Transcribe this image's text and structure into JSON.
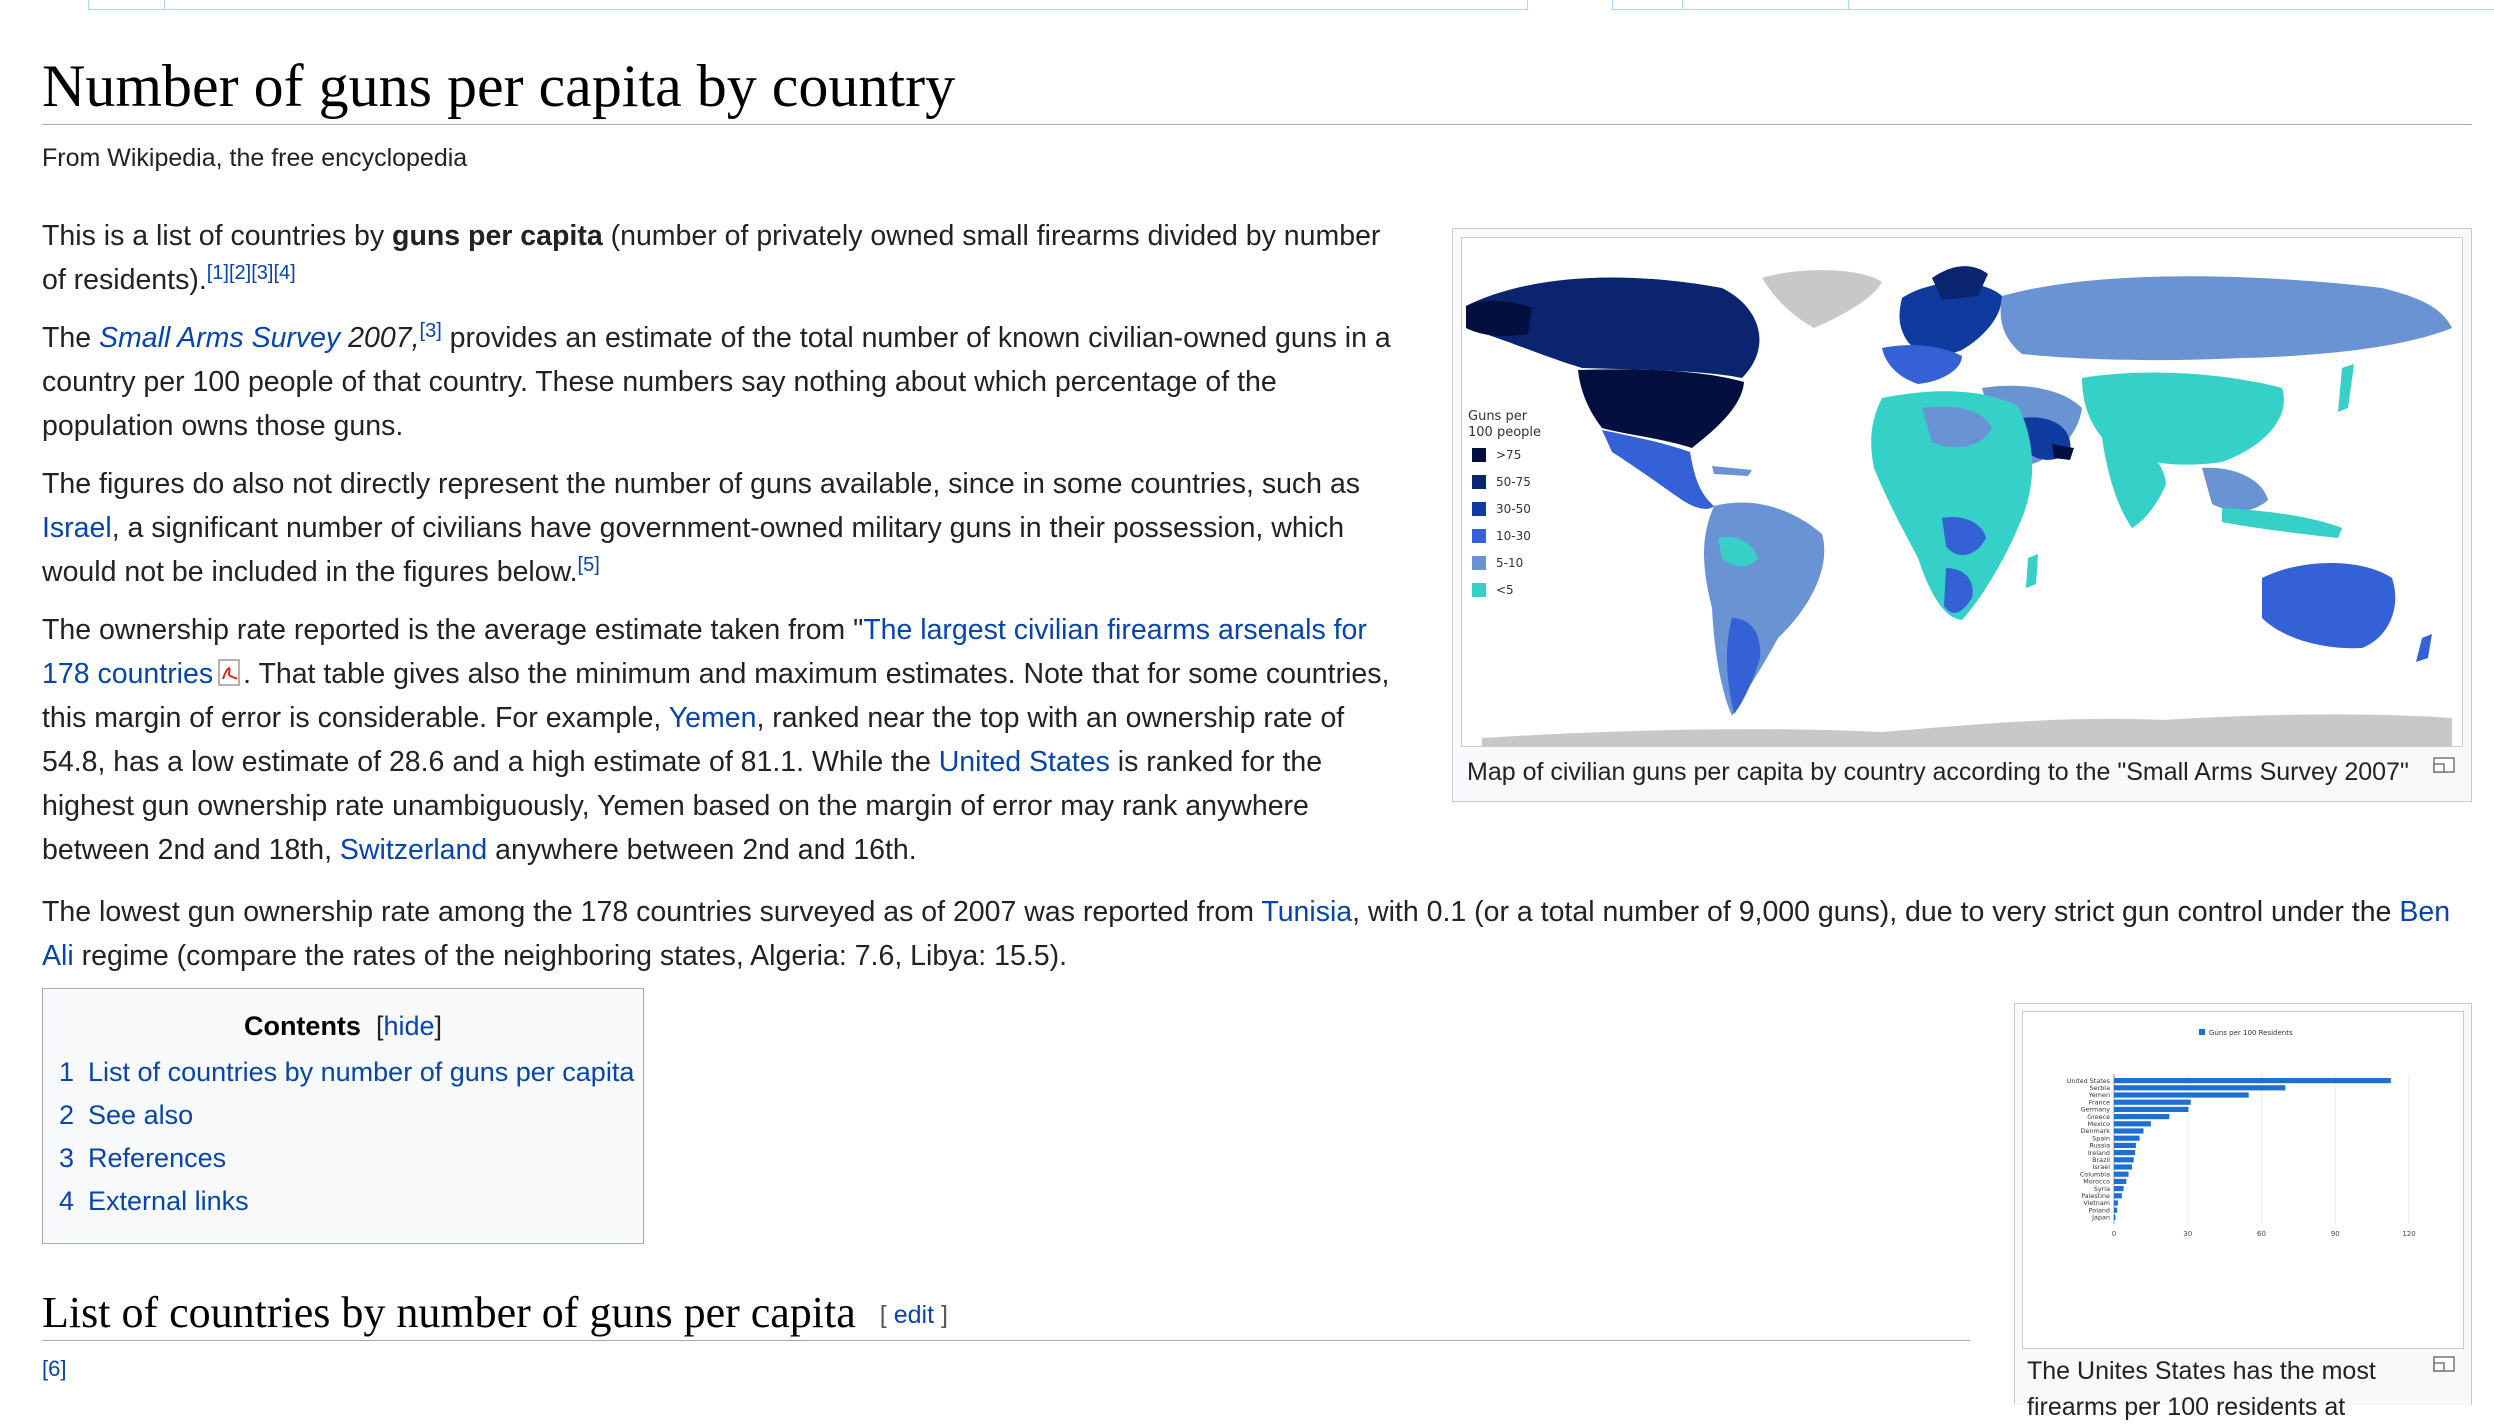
{
  "page": {
    "title": "Number of guns per capita by country",
    "subtitle": "From Wikipedia, the free encyclopedia"
  },
  "intro": {
    "p1_a": "This is a list of countries by ",
    "p1_bold": "guns per capita",
    "p1_b": " (number of privately owned small firearms divided by number of residents).",
    "p1_refs": [
      "[1]",
      "[2]",
      "[3]",
      "[4]"
    ],
    "p2_a": "The ",
    "p2_link": "Small Arms Survey",
    "p2_year": " 2007,",
    "p2_ref": "[3]",
    "p2_b": " provides an estimate of the total number of known civilian-owned guns in a country per 100 people of that country. These numbers say nothing about which percentage of the population owns those guns.",
    "p3_a": "The figures do also not directly represent the number of guns available, since in some countries, such as ",
    "p3_link": "Israel",
    "p3_b": ", a significant number of civilians have government-owned military guns in their possession, which would not be included in the figures below.",
    "p3_ref": "[5]",
    "p4_a": "The ownership rate reported is the average estimate taken from \"",
    "p4_link1": "The largest civilian firearms arsenals for 178 countries",
    "p4_b": ". That table gives also the minimum and maximum estimates. Note that for some countries, this margin of error is considerable. For example, ",
    "p4_link2": "Yemen",
    "p4_c": ", ranked near the top with an ownership rate of 54.8, has a low estimate of 28.6 and a high estimate of 81.1. While the ",
    "p4_link3": "United States",
    "p4_d": " is ranked for the highest gun ownership rate unambiguously, Yemen based on the margin of error may rank anywhere between 2nd and 18th, ",
    "p4_link4": "Switzerland",
    "p4_e": " anywhere between 2nd and 16th.",
    "p5_a": "The lowest gun ownership rate among the 178 countries surveyed as of 2007 was reported from ",
    "p5_link1": "Tunisia",
    "p5_b": ", with 0.1 (or a total number of 9,000 guns), due to very strict gun control under the ",
    "p5_link2": "Ben Ali",
    "p5_c": " regime (compare the rates of the neighboring states, Algeria: 7.6, Libya: 15.5)."
  },
  "map_figure": {
    "caption": "Map of civilian guns per capita by country according to the \"Small Arms Survey 2007\"",
    "legend_title_1": "Guns per",
    "legend_title_2": "100 people",
    "legend": [
      {
        "label": ">75",
        "color": "#03103f"
      },
      {
        "label": "50-75",
        "color": "#0a2470"
      },
      {
        "label": "30-50",
        "color": "#0f3a9e"
      },
      {
        "label": "10-30",
        "color": "#3461d6"
      },
      {
        "label": "5-10",
        "color": "#6a93d4"
      },
      {
        "label": "<5",
        "color": "#35d1c8"
      }
    ]
  },
  "toc": {
    "title": "Contents",
    "hide_open": "[",
    "hide_label": "hide",
    "hide_close": "]",
    "items": [
      {
        "num": "1",
        "label": "List of countries by number of guns per capita"
      },
      {
        "num": "2",
        "label": "See also"
      },
      {
        "num": "3",
        "label": "References"
      },
      {
        "num": "4",
        "label": "External links"
      }
    ]
  },
  "section": {
    "heading": "List of countries by number of guns per capita",
    "edit_open": "[",
    "edit_label": "edit",
    "edit_close": "]",
    "ref": "[6]"
  },
  "bar_figure": {
    "caption_line1": "The Unites States has the most",
    "caption_line2": "firearms per 100 residents at"
  },
  "chart_data": {
    "type": "bar",
    "orientation": "horizontal",
    "legend": "Guns per 100 Residents",
    "legend_position": "top",
    "color": "#1f6fd1",
    "categories": [
      "United States",
      "Serbia",
      "Yemen",
      "France",
      "Germany",
      "Greece",
      "Mexico",
      "Denmark",
      "Spain",
      "Russia",
      "Ireland",
      "Brazil",
      "Israel",
      "Columbia",
      "Morocco",
      "Syria",
      "Palestine",
      "Vietnam",
      "Poland",
      "Japan"
    ],
    "values": [
      112.6,
      69.7,
      54.8,
      31.2,
      30.3,
      22.5,
      15,
      12,
      10.4,
      8.9,
      8.6,
      8,
      7.3,
      5.9,
      5,
      3.9,
      3.2,
      1.6,
      1.3,
      0.6
    ],
    "xticks": [
      0,
      30,
      60,
      90,
      120
    ],
    "xlim": [
      0,
      120
    ],
    "grid": true
  }
}
